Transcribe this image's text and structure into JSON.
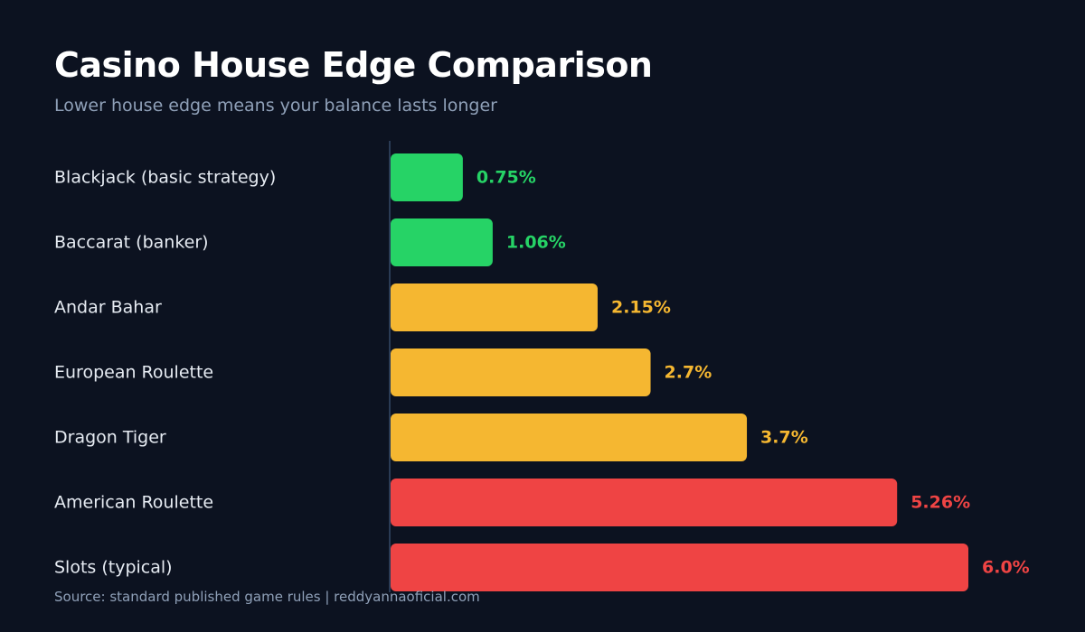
{
  "header": {
    "title": "Casino House Edge Comparison",
    "subtitle": "Lower house edge means your balance lasts longer"
  },
  "footer": {
    "source": "Source: standard published game rules  |  reddyannaoficial.com"
  },
  "colors": {
    "background": "#0c1220",
    "low": "#26d366",
    "medium": "#f5b731",
    "high": "#ef4444",
    "axis": "#2a3b55"
  },
  "chart_data": {
    "type": "bar",
    "orientation": "horizontal",
    "title": "Casino House Edge Comparison",
    "subtitle": "Lower house edge means your balance lasts longer",
    "categories": [
      "Blackjack (basic strategy)",
      "Baccarat (banker)",
      "Andar Bahar",
      "European Roulette",
      "Dragon Tiger",
      "American Roulette",
      "Slots (typical)"
    ],
    "values": [
      0.75,
      1.06,
      2.15,
      2.7,
      3.7,
      5.26,
      6.0
    ],
    "value_labels": [
      "0.75%",
      "1.06%",
      "2.15%",
      "2.7%",
      "3.7%",
      "5.26%",
      "6.0%"
    ],
    "bar_colors": [
      "low",
      "low",
      "medium",
      "medium",
      "medium",
      "high",
      "high"
    ],
    "xlim": [
      0,
      6
    ],
    "grid": false,
    "legend": "none"
  }
}
